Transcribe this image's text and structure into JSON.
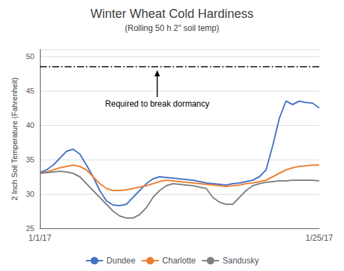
{
  "chart_data": {
    "type": "line",
    "title": "Winter Wheat Cold Hardiness",
    "subtitle": "(Rolling 50 h 2\" soil temp)",
    "ylabel": "2 Inch Soil Temperature (Fahrenheit)",
    "categories": [
      "1/1/17",
      null,
      null,
      null,
      null,
      null,
      null,
      null,
      null,
      null,
      null,
      null,
      null,
      null,
      null,
      null,
      null,
      null,
      null,
      null,
      null,
      null,
      null,
      null,
      null,
      null,
      null,
      null,
      null,
      null,
      null,
      null,
      null,
      null,
      null,
      null,
      null,
      null,
      null,
      null,
      null,
      null,
      "1/25/17"
    ],
    "series": [
      {
        "name": "Dundee",
        "color": "#4472C4",
        "values": [
          33.1,
          33.5,
          34.2,
          35.2,
          36.2,
          36.5,
          35.8,
          34.2,
          32.5,
          30.5,
          29.0,
          28.4,
          28.3,
          28.5,
          29.5,
          30.5,
          31.5,
          32.2,
          32.5,
          32.4,
          32.3,
          32.2,
          32.1,
          32.0,
          31.8,
          31.6,
          31.5,
          31.4,
          31.3,
          31.5,
          31.6,
          31.8,
          32.0,
          32.5,
          33.5,
          37.0,
          41.0,
          43.5,
          43.0,
          43.5,
          43.3,
          43.2,
          42.5
        ]
      },
      {
        "name": "Charlotte",
        "color": "#ED7D31",
        "values": [
          33.0,
          33.2,
          33.5,
          33.8,
          34.0,
          34.2,
          34.0,
          33.5,
          32.5,
          31.5,
          30.8,
          30.5,
          30.5,
          30.6,
          30.8,
          31.0,
          31.2,
          31.5,
          31.8,
          32.0,
          31.9,
          31.8,
          31.7,
          31.6,
          31.5,
          31.4,
          31.3,
          31.2,
          31.1,
          31.2,
          31.3,
          31.5,
          31.6,
          31.8,
          32.0,
          32.5,
          33.0,
          33.5,
          33.8,
          34.0,
          34.1,
          34.2,
          34.2
        ]
      },
      {
        "name": "Sandusky",
        "color": "#808080",
        "values": [
          33.0,
          33.1,
          33.2,
          33.3,
          33.2,
          33.0,
          32.5,
          31.5,
          30.5,
          29.5,
          28.5,
          27.5,
          26.8,
          26.5,
          26.5,
          27.0,
          28.0,
          29.5,
          30.5,
          31.2,
          31.5,
          31.4,
          31.3,
          31.2,
          31.0,
          30.8,
          29.5,
          28.8,
          28.5,
          28.5,
          29.5,
          30.5,
          31.2,
          31.5,
          31.7,
          31.8,
          31.9,
          31.9,
          32.0,
          32.0,
          32.0,
          32.0,
          31.9
        ]
      }
    ],
    "reference_line": 48.5,
    "annotation": "Required to break dormancy",
    "ylim": [
      25,
      51
    ],
    "yticks": [
      25,
      30,
      35,
      40,
      45,
      50
    ],
    "grid": true,
    "legend": "bottom"
  }
}
